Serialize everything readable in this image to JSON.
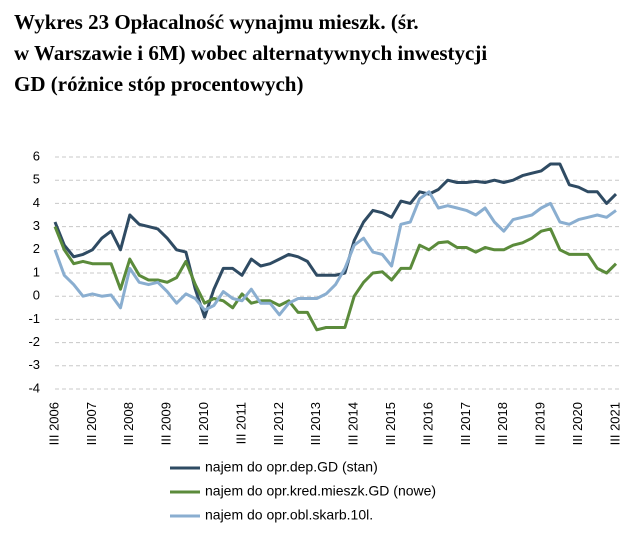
{
  "chart_data": {
    "type": "line",
    "title_lines": [
      "Wykres 23 Opłacalność wynajmu mieszk. (śr.",
      "w Warszawie i 6M) wobec alternatywnych inwestycji",
      "GD (różnice stóp procentowych)"
    ],
    "categories": [
      "III 2006",
      null,
      null,
      null,
      "III 2007",
      null,
      null,
      null,
      "III 2008",
      null,
      null,
      null,
      "III 2009",
      null,
      null,
      null,
      "III 2010",
      null,
      null,
      null,
      "III 2011",
      null,
      null,
      null,
      "III 2012",
      null,
      null,
      null,
      "III 2013",
      null,
      null,
      null,
      "III 2014",
      null,
      null,
      null,
      "III 2015",
      null,
      null,
      null,
      "III 2016",
      null,
      null,
      null,
      "III 2017",
      null,
      null,
      null,
      "III 2018",
      null,
      null,
      null,
      "III 2019",
      null,
      null,
      null,
      "III 2020",
      null,
      null,
      null,
      "III 2021"
    ],
    "series": [
      {
        "name": "najem do opr.dep.GD (stan)",
        "color": "#2f4b63",
        "values": [
          3.2,
          2.2,
          1.7,
          1.8,
          2.0,
          2.5,
          2.8,
          2.0,
          3.5,
          3.1,
          3.0,
          2.9,
          2.5,
          2.0,
          1.9,
          0.3,
          -0.9,
          0.3,
          1.2,
          1.2,
          0.9,
          1.6,
          1.3,
          1.4,
          1.6,
          1.8,
          1.7,
          1.5,
          0.9,
          0.9,
          0.9,
          1.0,
          2.4,
          3.2,
          3.7,
          3.6,
          3.4,
          4.1,
          4.0,
          4.5,
          4.4,
          4.6,
          5.0,
          4.9,
          4.9,
          4.95,
          4.9,
          5.0,
          4.9,
          5.0,
          5.2,
          5.3,
          5.4,
          5.7,
          5.7,
          4.8,
          4.7,
          4.5,
          4.5,
          4.0,
          4.4
        ]
      },
      {
        "name": "najem do opr.kred.mieszk.GD (nowe)",
        "color": "#5b8b3b",
        "values": [
          3.0,
          2.0,
          1.4,
          1.5,
          1.4,
          1.4,
          1.4,
          0.3,
          1.6,
          0.9,
          0.7,
          0.7,
          0.6,
          0.8,
          1.5,
          0.5,
          -0.3,
          -0.1,
          -0.2,
          -0.5,
          0.1,
          -0.3,
          -0.2,
          -0.2,
          -0.4,
          -0.2,
          -0.7,
          -0.7,
          -1.45,
          -1.35,
          -1.35,
          -1.35,
          0.0,
          0.6,
          1.0,
          1.05,
          0.7,
          1.2,
          1.2,
          2.2,
          2.0,
          2.3,
          2.35,
          2.1,
          2.1,
          1.9,
          2.1,
          2.0,
          2.0,
          2.2,
          2.3,
          2.5,
          2.8,
          2.9,
          2.0,
          1.8,
          1.8,
          1.8,
          1.2,
          1.0,
          1.4
        ]
      },
      {
        "name": "najem do opr.obl.skarb.10l.",
        "color": "#8aaed0",
        "values": [
          2.0,
          0.9,
          0.5,
          0.0,
          0.1,
          0.0,
          0.05,
          -0.5,
          1.2,
          0.6,
          0.5,
          0.6,
          0.2,
          -0.3,
          0.1,
          -0.1,
          -0.6,
          -0.4,
          0.2,
          -0.1,
          -0.2,
          0.3,
          -0.3,
          -0.3,
          -0.8,
          -0.3,
          -0.1,
          -0.1,
          -0.1,
          0.1,
          0.5,
          1.2,
          2.2,
          2.5,
          1.9,
          1.8,
          1.3,
          3.1,
          3.2,
          4.2,
          4.5,
          3.8,
          3.9,
          3.8,
          3.7,
          3.5,
          3.8,
          3.2,
          2.8,
          3.3,
          3.4,
          3.5,
          3.8,
          4.0,
          3.2,
          3.1,
          3.3,
          3.4,
          3.5,
          3.4,
          3.7
        ]
      }
    ],
    "ylim": [
      -4,
      6
    ],
    "yticks": [
      -4,
      -3,
      -2,
      -1,
      0,
      1,
      2,
      3,
      4,
      5,
      6
    ],
    "grid": true
  }
}
